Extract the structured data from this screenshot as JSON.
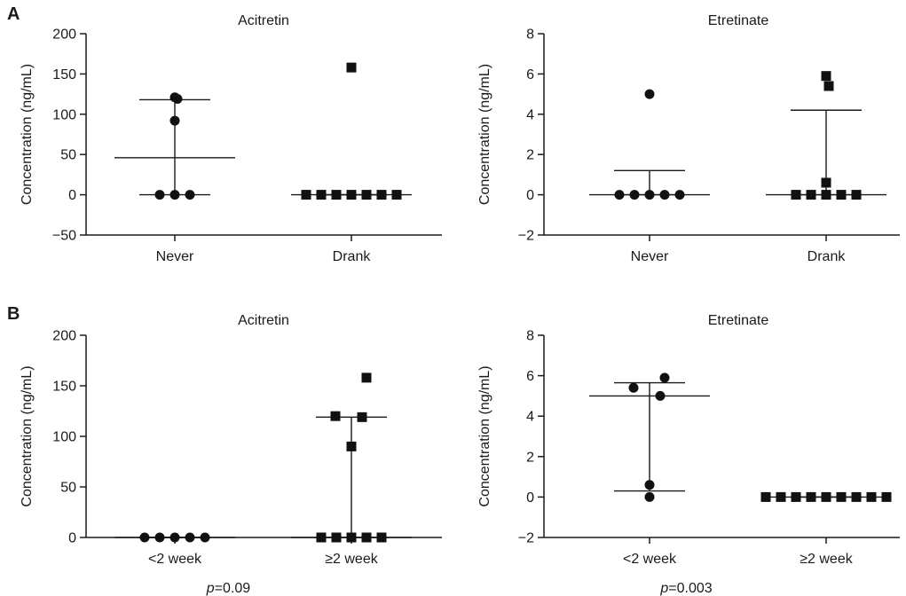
{
  "panel_letters": [
    "A",
    "B"
  ],
  "chart_data": [
    {
      "type": "scatter",
      "panel": "A",
      "title": "Acitretin",
      "ylabel": "Concentration (ng/mL)",
      "xlabel": "",
      "categories": [
        "Never",
        "Drank"
      ],
      "ylim": [
        -50,
        200
      ],
      "yticks": [
        -50,
        0,
        50,
        100,
        150,
        200
      ],
      "yticklabels": [
        "−50",
        "0",
        "50",
        "100",
        "150",
        "200"
      ],
      "groups": [
        {
          "category": "Never",
          "marker": "circle",
          "points": [
            0,
            0,
            0,
            92,
            119,
            121
          ],
          "center": 46,
          "lower": 0,
          "upper": 118
        },
        {
          "category": "Drank",
          "marker": "square",
          "points": [
            0,
            0,
            0,
            0,
            0,
            0,
            0,
            158
          ],
          "center": 0,
          "lower": 0,
          "upper": 0
        }
      ],
      "pvalue": ""
    },
    {
      "type": "scatter",
      "panel": "A",
      "title": "Etretinate",
      "ylabel": "Concentration (ng/mL)",
      "xlabel": "",
      "categories": [
        "Never",
        "Drank"
      ],
      "ylim": [
        -2,
        8
      ],
      "yticks": [
        -2,
        0,
        2,
        4,
        6,
        8
      ],
      "yticklabels": [
        "−2",
        "0",
        "2",
        "4",
        "6",
        "8"
      ],
      "groups": [
        {
          "category": "Never",
          "marker": "circle",
          "points": [
            0,
            0,
            0,
            0,
            0,
            5.0
          ],
          "center": 0,
          "lower": 0,
          "upper": 1.2
        },
        {
          "category": "Drank",
          "marker": "square",
          "points": [
            0,
            0,
            0,
            0,
            0,
            0.6,
            5.4,
            5.9
          ],
          "center": 0,
          "lower": 0,
          "upper": 4.2
        }
      ],
      "pvalue": ""
    },
    {
      "type": "scatter",
      "panel": "B",
      "title": "Acitretin",
      "ylabel": "Concentration (ng/mL)",
      "xlabel": "",
      "categories": [
        "<2 week",
        "≥2 week"
      ],
      "ylim": [
        0,
        200
      ],
      "yticks": [
        0,
        50,
        100,
        150,
        200
      ],
      "yticklabels": [
        "0",
        "50",
        "100",
        "150",
        "200"
      ],
      "groups": [
        {
          "category": "<2 week",
          "marker": "circle",
          "points": [
            0,
            0,
            0,
            0,
            0
          ],
          "center": 0,
          "lower": 0,
          "upper": 0
        },
        {
          "category": "≥2 week",
          "marker": "square",
          "points": [
            0,
            0,
            0,
            0,
            0,
            90,
            119,
            120,
            158
          ],
          "center": 0,
          "lower": 0,
          "upper": 119
        }
      ],
      "pvalue": {
        "label": "p",
        "value": "=0.09"
      }
    },
    {
      "type": "scatter",
      "panel": "B",
      "title": "Etretinate",
      "ylabel": "Concentration (ng/mL)",
      "xlabel": "",
      "categories": [
        "<2 week",
        "≥2 week"
      ],
      "ylim": [
        -2,
        8
      ],
      "yticks": [
        -2,
        0,
        2,
        4,
        6,
        8
      ],
      "yticklabels": [
        "−2",
        "0",
        "2",
        "4",
        "6",
        "8"
      ],
      "groups": [
        {
          "category": "<2 week",
          "marker": "circle",
          "points": [
            0,
            0.6,
            5.0,
            5.4,
            5.9
          ],
          "center": 5.0,
          "lower": 0.3,
          "upper": 5.65
        },
        {
          "category": "≥2 week",
          "marker": "square",
          "points": [
            0,
            0,
            0,
            0,
            0,
            0,
            0,
            0,
            0
          ],
          "center": 0,
          "lower": 0,
          "upper": 0
        }
      ],
      "pvalue": {
        "label": "p",
        "value": "=0.003"
      }
    }
  ]
}
